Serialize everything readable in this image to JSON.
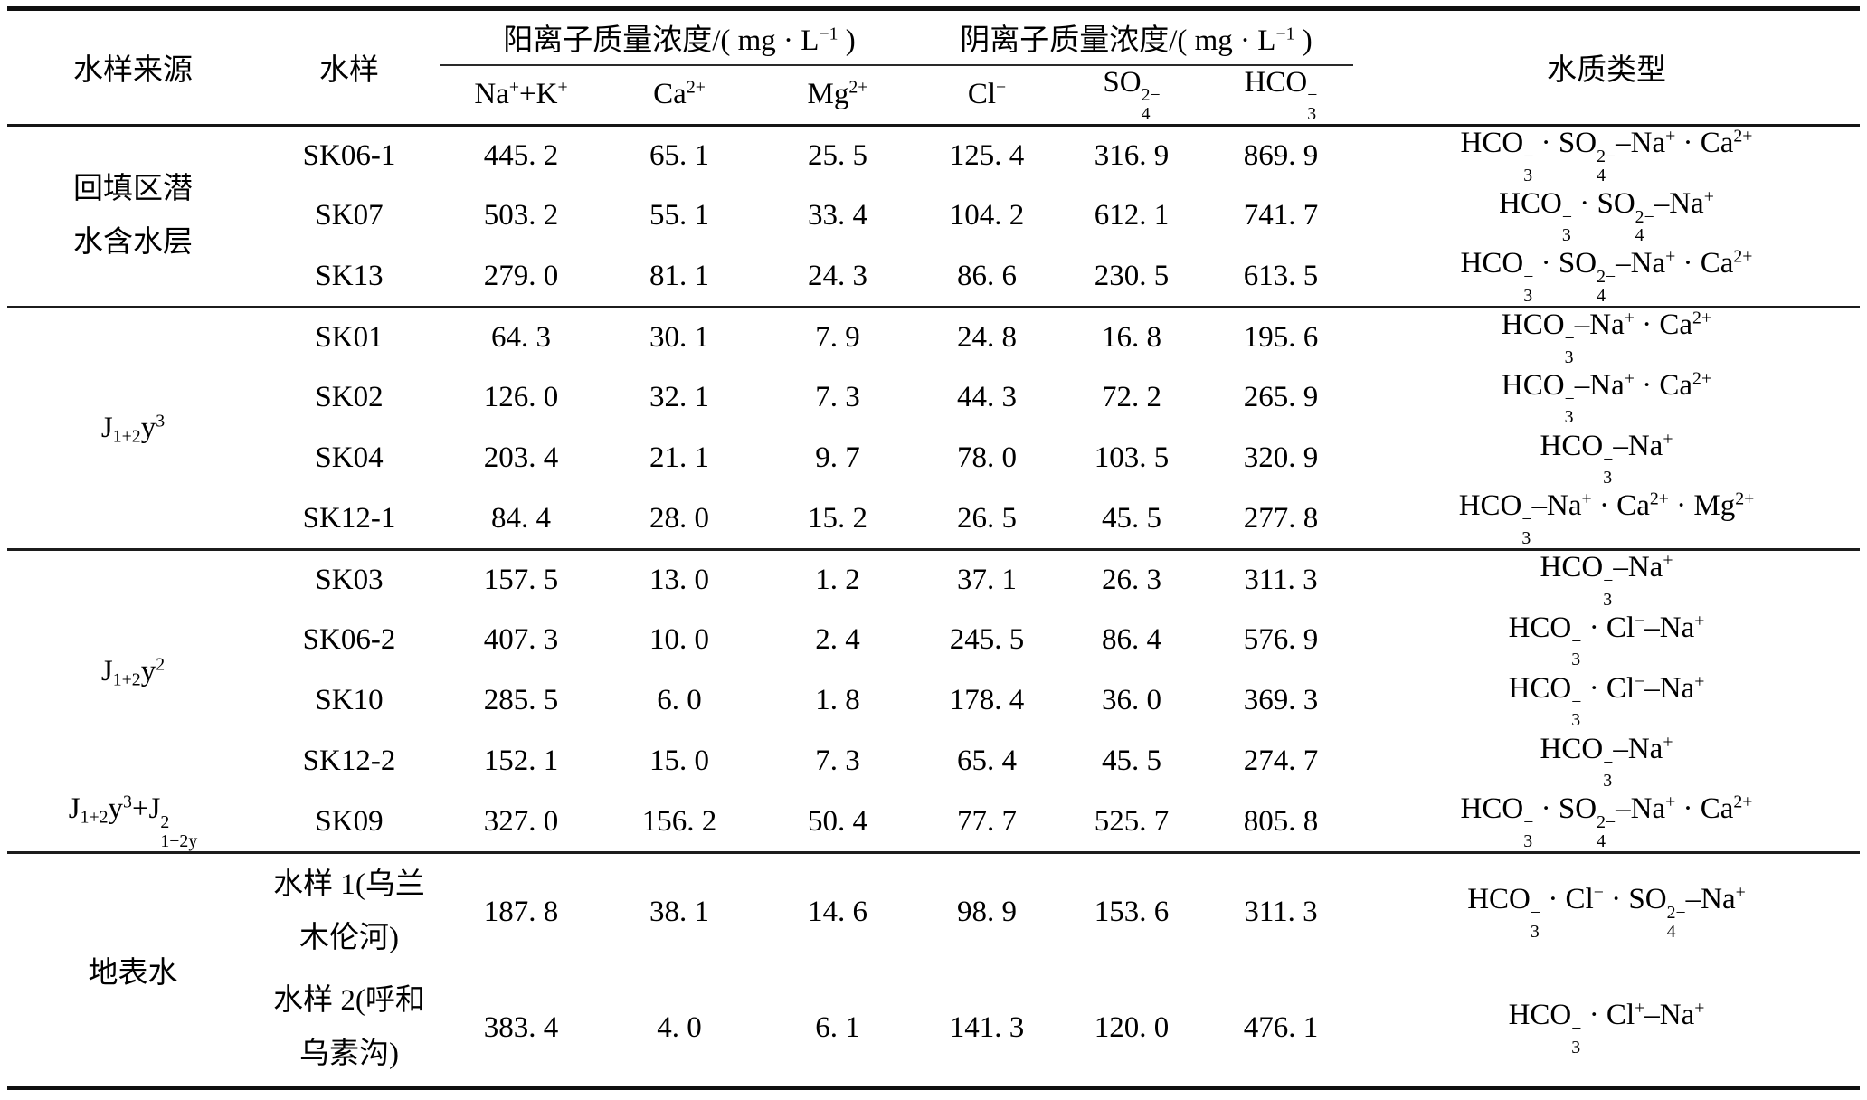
{
  "table": {
    "header": {
      "source": "水样来源",
      "sample": "水样",
      "cation_group": "阳离子质量浓度/( mg · L<sup>−1</sup> )",
      "anion_group": "阴离子质量浓度/( mg · L<sup>−1</sup> )",
      "water_type": "水质类型",
      "subcolumns": [
        "Na<sup>+</sup>+K<sup>+</sup>",
        "Ca<sup>2+</sup>",
        "Mg<sup>2+</sup>",
        "Cl<sup>−</sup>",
        "SO<span class='st'><span>2−</span><span>4</span></span>",
        "HCO<span class='st'><span>−</span><span>3</span></span>"
      ]
    },
    "groups": [
      {
        "source": "回填区潜\n水含水层",
        "rows": [
          {
            "sample": "SK06-1",
            "values": [
              "445. 2",
              "65. 1",
              "25. 5",
              "125. 4",
              "316. 9",
              "869. 9"
            ],
            "water_type": "HCO<span class='st'><span>−</span><span>3</span></span> · SO<span class='st'><span>2−</span><span>4</span></span>–Na<sup>+</sup> · Ca<sup>2+</sup>"
          },
          {
            "sample": "SK07",
            "values": [
              "503. 2",
              "55. 1",
              "33. 4",
              "104. 2",
              "612. 1",
              "741. 7"
            ],
            "water_type": "HCO<span class='st'><span>−</span><span>3</span></span> · SO<span class='st'><span>2−</span><span>4</span></span>–Na<sup>+</sup>"
          },
          {
            "sample": "SK13",
            "values": [
              "279. 0",
              "81. 1",
              "24. 3",
              "86. 6",
              "230. 5",
              "613. 5"
            ],
            "water_type": "HCO<span class='st'><span>−</span><span>3</span></span> · SO<span class='st'><span>2−</span><span>4</span></span>–Na<sup>+</sup> · Ca<sup>2+</sup>"
          }
        ]
      },
      {
        "source_html": "J<sub>1+2</sub>y<sup>3</sup>",
        "rows": [
          {
            "sample": "SK01",
            "values": [
              "64. 3",
              "30. 1",
              "7. 9",
              "24. 8",
              "16. 8",
              "195. 6"
            ],
            "water_type": "HCO<span class='st'><span>−</span><span>3</span></span>–Na<sup>+</sup> · Ca<sup>2+</sup>"
          },
          {
            "sample": "SK02",
            "values": [
              "126. 0",
              "32. 1",
              "7. 3",
              "44. 3",
              "72. 2",
              "265. 9"
            ],
            "water_type": "HCO<span class='st'><span>−</span><span>3</span></span>–Na<sup>+</sup> · Ca<sup>2+</sup>"
          },
          {
            "sample": "SK04",
            "values": [
              "203. 4",
              "21. 1",
              "9. 7",
              "78. 0",
              "103. 5",
              "320. 9"
            ],
            "water_type": "HCO<span class='st'><span>−</span><span>3</span></span>–Na<sup>+</sup>"
          },
          {
            "sample": "SK12-1",
            "values": [
              "84. 4",
              "28. 0",
              "15. 2",
              "26. 5",
              "45. 5",
              "277. 8"
            ],
            "water_type": "HCO<span class='st'><span>−</span><span>3</span></span>–Na<sup>+</sup> · Ca<sup>2+</sup> · Mg<sup>2+</sup>"
          }
        ]
      },
      {
        "source_html": "J<sub>1+2</sub>y<sup>2</sup>",
        "rows": [
          {
            "sample": "SK03",
            "values": [
              "157. 5",
              "13. 0",
              "1. 2",
              "37. 1",
              "26. 3",
              "311. 3"
            ],
            "water_type": "HCO<span class='st'><span>−</span><span>3</span></span>–Na<sup>+</sup>"
          },
          {
            "sample": "SK06-2",
            "values": [
              "407. 3",
              "10. 0",
              "2. 4",
              "245. 5",
              "86. 4",
              "576. 9"
            ],
            "water_type": "HCO<span class='st'><span>−</span><span>3</span></span> · Cl<sup>−</sup>–Na<sup>+</sup>"
          },
          {
            "sample": "SK10",
            "values": [
              "285. 5",
              "6. 0",
              "1. 8",
              "178. 4",
              "36. 0",
              "369. 3"
            ],
            "water_type": "HCO<span class='st'><span>−</span><span>3</span></span> · Cl<sup>−</sup>–Na<sup>+</sup>"
          },
          {
            "sample": "SK12-2",
            "values": [
              "152. 1",
              "15. 0",
              "7. 3",
              "65. 4",
              "45. 5",
              "274. 7"
            ],
            "water_type": "HCO<span class='st'><span>−</span><span>3</span></span>–Na<sup>+</sup>"
          }
        ]
      },
      {
        "source_html": "J<sub>1+2</sub>y<sup>3</sup>+J<span class='st'><span>2</span><span>1−2y</span></span>",
        "rows": [
          {
            "sample": "SK09",
            "values": [
              "327. 0",
              "156. 2",
              "50. 4",
              "77. 7",
              "525. 7",
              "805. 8"
            ],
            "water_type": "HCO<span class='st'><span>−</span><span>3</span></span> · SO<span class='st'><span>2−</span><span>4</span></span>–Na<sup>+</sup> · Ca<sup>2+</sup>"
          }
        ]
      },
      {
        "source": "地表水",
        "rows": [
          {
            "sample": "水样 1(乌兰\n木伦河)",
            "values": [
              "187. 8",
              "38. 1",
              "14. 6",
              "98. 9",
              "153. 6",
              "311. 3"
            ],
            "water_type": "HCO<span class='st'><span>−</span><span>3</span></span> · Cl<sup>−</sup> · SO<span class='st'><span>2−</span><span>4</span></span>–Na<sup>+</sup>"
          },
          {
            "sample": "水样 2(呼和\n乌素沟)",
            "values": [
              "383. 4",
              "4. 0",
              "6. 1",
              "141. 3",
              "120. 0",
              "476. 1"
            ],
            "water_type": "HCO<span class='st'><span>−</span><span>3</span></span> · Cl<sup>+</sup>–Na<sup>+</sup>"
          }
        ]
      }
    ]
  }
}
